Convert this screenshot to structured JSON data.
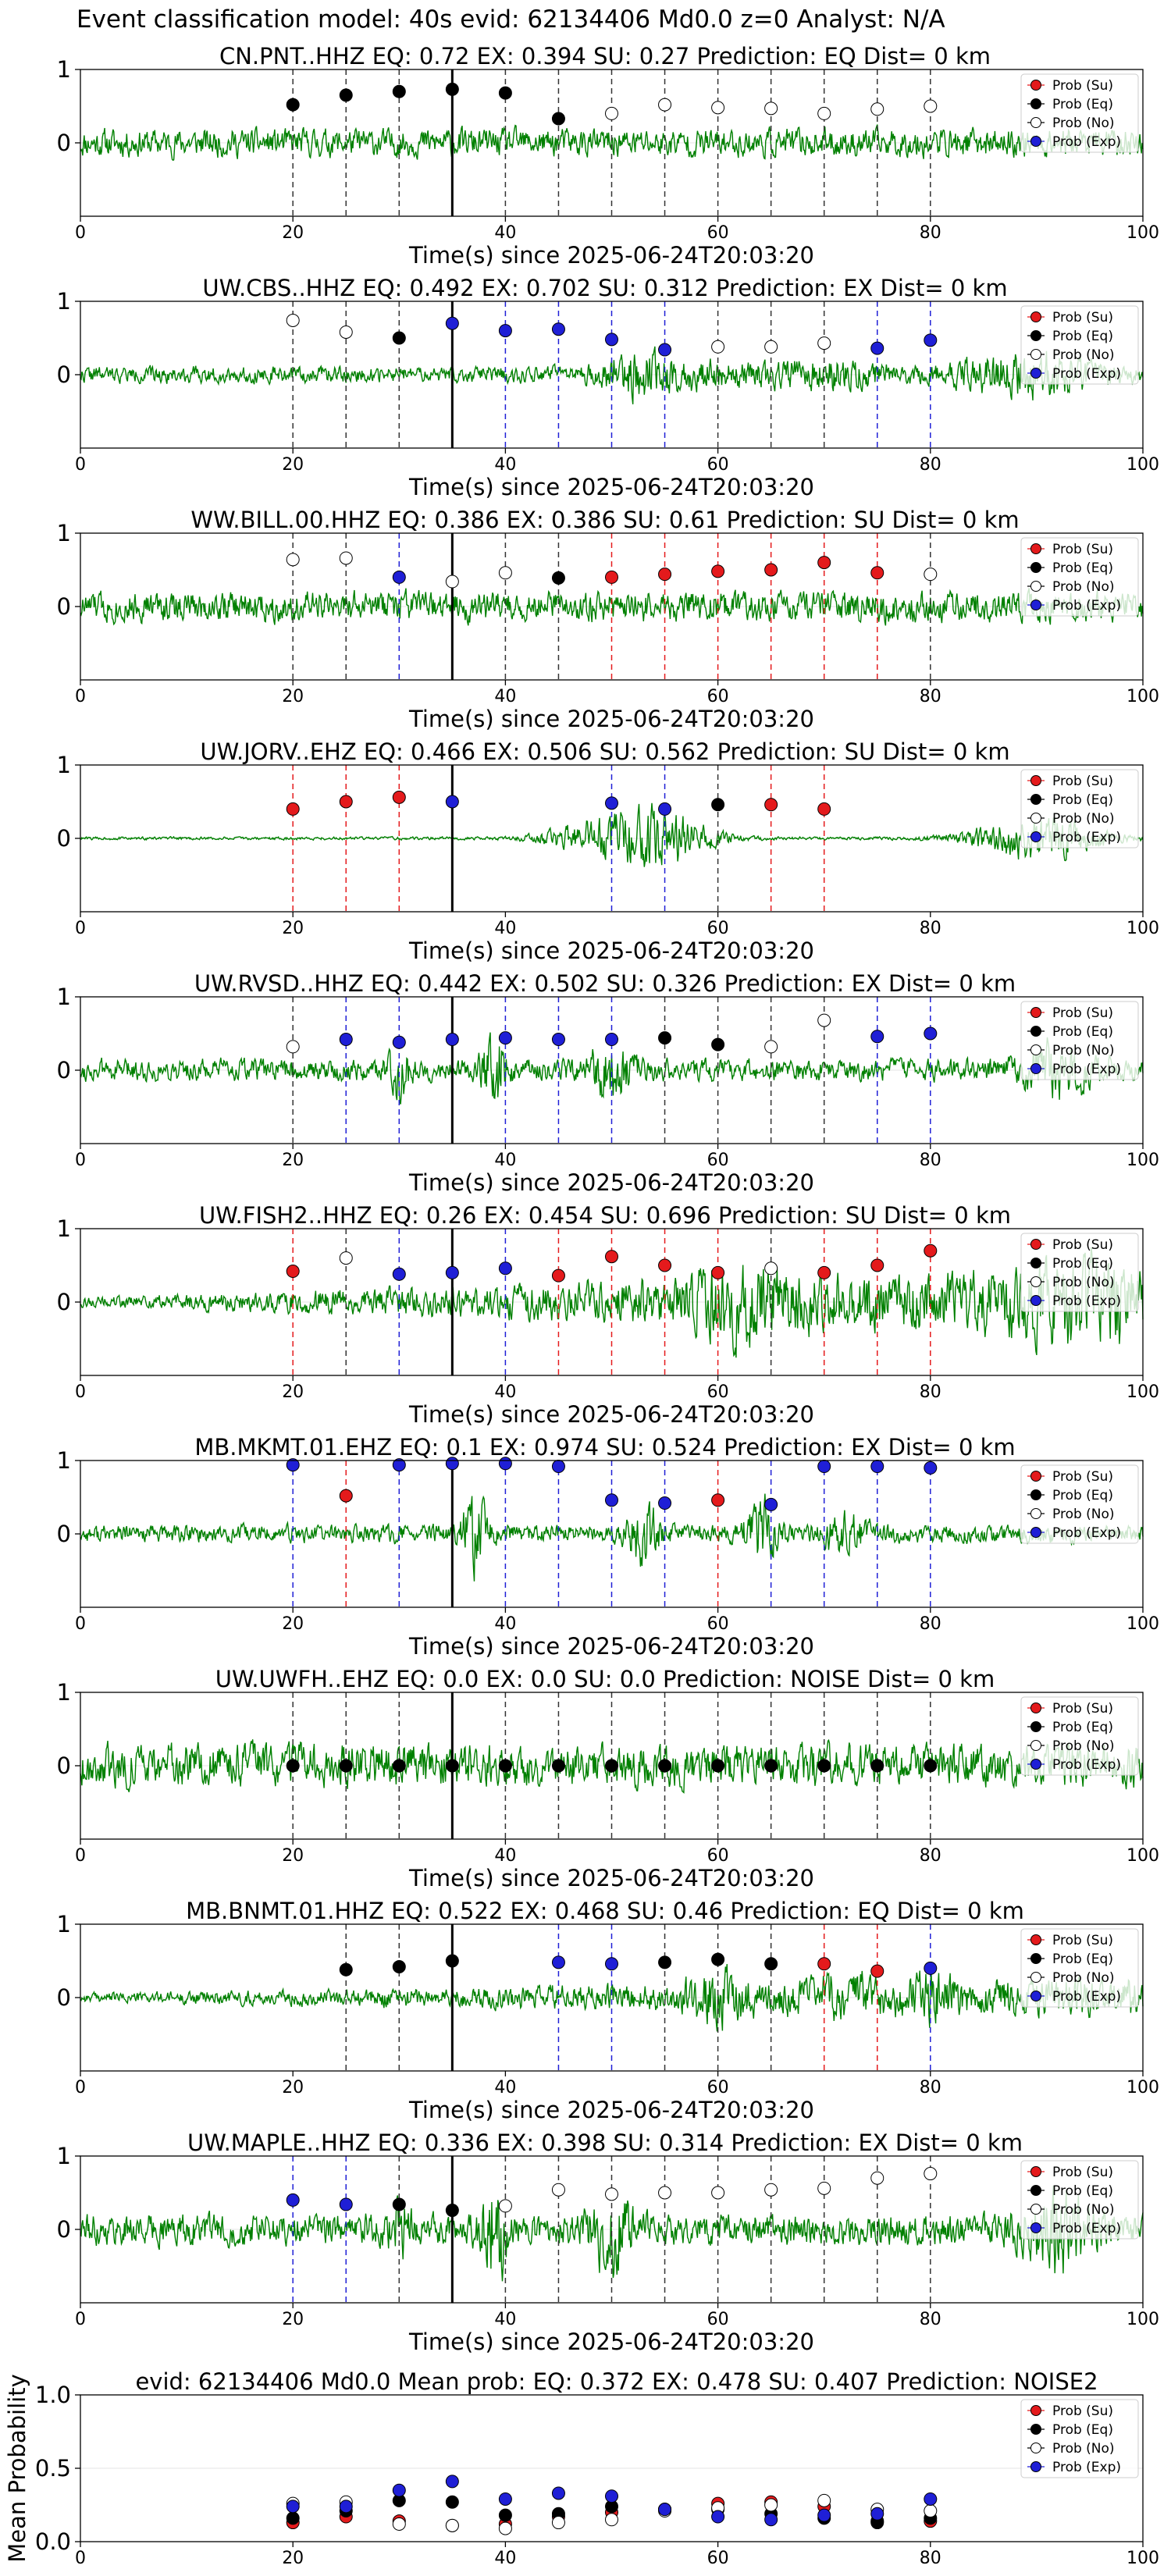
{
  "figure": {
    "title": "Event classification model: 40s evid: 62134406 Md0.0 z=0 Analyst: N/A"
  },
  "legend": {
    "entries": [
      "Prob (Su)",
      "Prob (Eq)",
      "Prob (No)",
      "Prob (Exp)"
    ],
    "colors": {
      "su": "#e41a1c",
      "eq": "#000000",
      "no": "#ffffff",
      "exp": "#1f1fd6"
    },
    "placement": "top-right"
  },
  "colors": {
    "waveform": "#008000",
    "su": "#e41a1c",
    "eq": "#000000",
    "no": "#ffffff",
    "exp": "#1f1fd6",
    "pick": "#000000"
  },
  "chart_data": [
    {
      "type": "line",
      "title": "CN.PNT..HHZ   EQ: 0.72  EX: 0.394  SU: 0.27   Prediction: EQ    Dist= 0 km",
      "xlabel": "Time(s) since 2025-06-24T20:03:20",
      "xlim": [
        0,
        100
      ],
      "ylim": [
        -1,
        1
      ],
      "xticks": [
        "0",
        "20",
        "40",
        "60",
        "80",
        "100"
      ],
      "yticks": [
        "1",
        "0"
      ],
      "pick_time": 35,
      "seed": 11,
      "amp": 0.28,
      "envelope": "uniform",
      "points": [
        {
          "x": 20,
          "y": 0.52,
          "cls": "eq"
        },
        {
          "x": 25,
          "y": 0.65,
          "cls": "eq"
        },
        {
          "x": 30,
          "y": 0.7,
          "cls": "eq"
        },
        {
          "x": 35,
          "y": 0.73,
          "cls": "eq"
        },
        {
          "x": 40,
          "y": 0.68,
          "cls": "eq"
        },
        {
          "x": 45,
          "y": 0.33,
          "cls": "eq"
        },
        {
          "x": 50,
          "y": 0.4,
          "cls": "no"
        },
        {
          "x": 55,
          "y": 0.52,
          "cls": "no"
        },
        {
          "x": 60,
          "y": 0.48,
          "cls": "no"
        },
        {
          "x": 65,
          "y": 0.47,
          "cls": "no"
        },
        {
          "x": 70,
          "y": 0.4,
          "cls": "no"
        },
        {
          "x": 75,
          "y": 0.46,
          "cls": "no"
        },
        {
          "x": 80,
          "y": 0.5,
          "cls": "no"
        }
      ]
    },
    {
      "type": "line",
      "title": "UW.CBS..HHZ   EQ: 0.492  EX: 0.702  SU: 0.312   Prediction: EX    Dist= 0 km",
      "xlabel": "Time(s) since 2025-06-24T20:03:20",
      "xlim": [
        0,
        100
      ],
      "ylim": [
        -1,
        1
      ],
      "xticks": [
        "0",
        "20",
        "40",
        "60",
        "80",
        "100"
      ],
      "yticks": [
        "1",
        "0"
      ],
      "pick_time": 35,
      "seed": 22,
      "amp": 0.2,
      "envelope": "burst50",
      "points": [
        {
          "x": 20,
          "y": 0.74,
          "cls": "no"
        },
        {
          "x": 25,
          "y": 0.58,
          "cls": "no"
        },
        {
          "x": 30,
          "y": 0.5,
          "cls": "eq"
        },
        {
          "x": 35,
          "y": 0.7,
          "cls": "exp"
        },
        {
          "x": 40,
          "y": 0.6,
          "cls": "exp"
        },
        {
          "x": 45,
          "y": 0.62,
          "cls": "exp"
        },
        {
          "x": 50,
          "y": 0.48,
          "cls": "exp"
        },
        {
          "x": 55,
          "y": 0.34,
          "cls": "exp"
        },
        {
          "x": 60,
          "y": 0.38,
          "cls": "no"
        },
        {
          "x": 65,
          "y": 0.38,
          "cls": "no"
        },
        {
          "x": 70,
          "y": 0.43,
          "cls": "no"
        },
        {
          "x": 75,
          "y": 0.36,
          "cls": "exp"
        },
        {
          "x": 80,
          "y": 0.47,
          "cls": "exp"
        }
      ]
    },
    {
      "type": "line",
      "title": "WW.BILL.00.HHZ   EQ: 0.386  EX: 0.386  SU: 0.61   Prediction: SU    Dist= 0 km",
      "xlabel": "Time(s) since 2025-06-24T20:03:20",
      "xlim": [
        0,
        100
      ],
      "ylim": [
        -1,
        1
      ],
      "xticks": [
        "0",
        "20",
        "40",
        "60",
        "80",
        "100"
      ],
      "yticks": [
        "1",
        "0"
      ],
      "pick_time": 35,
      "seed": 33,
      "amp": 0.3,
      "envelope": "uniform",
      "points": [
        {
          "x": 20,
          "y": 0.64,
          "cls": "no"
        },
        {
          "x": 25,
          "y": 0.66,
          "cls": "no"
        },
        {
          "x": 30,
          "y": 0.4,
          "cls": "exp"
        },
        {
          "x": 35,
          "y": 0.34,
          "cls": "no"
        },
        {
          "x": 40,
          "y": 0.46,
          "cls": "no"
        },
        {
          "x": 45,
          "y": 0.39,
          "cls": "eq"
        },
        {
          "x": 50,
          "y": 0.4,
          "cls": "su"
        },
        {
          "x": 55,
          "y": 0.44,
          "cls": "su"
        },
        {
          "x": 60,
          "y": 0.48,
          "cls": "su"
        },
        {
          "x": 65,
          "y": 0.5,
          "cls": "su"
        },
        {
          "x": 70,
          "y": 0.6,
          "cls": "su"
        },
        {
          "x": 75,
          "y": 0.46,
          "cls": "su"
        },
        {
          "x": 80,
          "y": 0.44,
          "cls": "no"
        }
      ]
    },
    {
      "type": "line",
      "title": "UW.JORV..EHZ   EQ: 0.466  EX: 0.506  SU: 0.562   Prediction: SU    Dist= 0 km",
      "xlabel": "Time(s) since 2025-06-24T20:03:20",
      "xlim": [
        0,
        100
      ],
      "ylim": [
        -1,
        1
      ],
      "xticks": [
        "0",
        "20",
        "40",
        "60",
        "80",
        "100"
      ],
      "yticks": [
        "1",
        "0"
      ],
      "pick_time": 35,
      "seed": 44,
      "amp": 0.6,
      "envelope": "jorv",
      "points": [
        {
          "x": 20,
          "y": 0.4,
          "cls": "su"
        },
        {
          "x": 25,
          "y": 0.5,
          "cls": "su"
        },
        {
          "x": 30,
          "y": 0.56,
          "cls": "su"
        },
        {
          "x": 35,
          "y": 0.5,
          "cls": "exp"
        },
        {
          "x": 50,
          "y": 0.48,
          "cls": "exp"
        },
        {
          "x": 55,
          "y": 0.4,
          "cls": "exp"
        },
        {
          "x": 60,
          "y": 0.46,
          "cls": "eq"
        },
        {
          "x": 65,
          "y": 0.46,
          "cls": "su"
        },
        {
          "x": 70,
          "y": 0.4,
          "cls": "su"
        }
      ]
    },
    {
      "type": "line",
      "title": "UW.RVSD..HHZ   EQ: 0.442  EX: 0.502  SU: 0.326   Prediction: EX    Dist= 0 km",
      "xlabel": "Time(s) since 2025-06-24T20:03:20",
      "xlim": [
        0,
        100
      ],
      "ylim": [
        -1,
        1
      ],
      "xticks": [
        "0",
        "20",
        "40",
        "60",
        "80",
        "100"
      ],
      "yticks": [
        "1",
        "0"
      ],
      "pick_time": 35,
      "seed": 55,
      "amp": 0.24,
      "envelope": "spikes",
      "points": [
        {
          "x": 20,
          "y": 0.32,
          "cls": "no"
        },
        {
          "x": 25,
          "y": 0.42,
          "cls": "exp"
        },
        {
          "x": 30,
          "y": 0.38,
          "cls": "exp"
        },
        {
          "x": 35,
          "y": 0.42,
          "cls": "exp"
        },
        {
          "x": 40,
          "y": 0.44,
          "cls": "exp"
        },
        {
          "x": 45,
          "y": 0.42,
          "cls": "exp"
        },
        {
          "x": 50,
          "y": 0.42,
          "cls": "exp"
        },
        {
          "x": 55,
          "y": 0.44,
          "cls": "eq"
        },
        {
          "x": 60,
          "y": 0.35,
          "cls": "eq"
        },
        {
          "x": 65,
          "y": 0.32,
          "cls": "no"
        },
        {
          "x": 70,
          "y": 0.68,
          "cls": "no"
        },
        {
          "x": 75,
          "y": 0.46,
          "cls": "exp"
        },
        {
          "x": 80,
          "y": 0.5,
          "cls": "exp"
        }
      ]
    },
    {
      "type": "line",
      "title": "UW.FISH2..HHZ   EQ: 0.26  EX: 0.454  SU: 0.696   Prediction: SU    Dist= 0 km",
      "xlabel": "Time(s) since 2025-06-24T20:03:20",
      "xlim": [
        0,
        100
      ],
      "ylim": [
        -1,
        1
      ],
      "xticks": [
        "0",
        "20",
        "40",
        "60",
        "80",
        "100"
      ],
      "yticks": [
        "1",
        "0"
      ],
      "pick_time": 35,
      "seed": 66,
      "amp": 0.5,
      "envelope": "rising",
      "points": [
        {
          "x": 20,
          "y": 0.42,
          "cls": "su"
        },
        {
          "x": 25,
          "y": 0.6,
          "cls": "no"
        },
        {
          "x": 30,
          "y": 0.38,
          "cls": "exp"
        },
        {
          "x": 35,
          "y": 0.4,
          "cls": "exp"
        },
        {
          "x": 40,
          "y": 0.46,
          "cls": "exp"
        },
        {
          "x": 45,
          "y": 0.36,
          "cls": "su"
        },
        {
          "x": 50,
          "y": 0.62,
          "cls": "su"
        },
        {
          "x": 55,
          "y": 0.5,
          "cls": "su"
        },
        {
          "x": 60,
          "y": 0.4,
          "cls": "su"
        },
        {
          "x": 65,
          "y": 0.46,
          "cls": "no"
        },
        {
          "x": 70,
          "y": 0.4,
          "cls": "su"
        },
        {
          "x": 75,
          "y": 0.5,
          "cls": "su"
        },
        {
          "x": 80,
          "y": 0.7,
          "cls": "su"
        }
      ]
    },
    {
      "type": "line",
      "title": "MB.MKMT.01.EHZ   EQ: 0.1  EX: 0.974  SU: 0.524   Prediction: EX    Dist= 0 km",
      "xlabel": "Time(s) since 2025-06-24T20:03:20",
      "xlim": [
        0,
        100
      ],
      "ylim": [
        -1,
        1
      ],
      "xticks": [
        "0",
        "20",
        "40",
        "60",
        "80",
        "100"
      ],
      "yticks": [
        "1",
        "0"
      ],
      "pick_time": 35,
      "seed": 77,
      "amp": 0.22,
      "envelope": "blasts",
      "points": [
        {
          "x": 20,
          "y": 0.94,
          "cls": "exp"
        },
        {
          "x": 25,
          "y": 0.52,
          "cls": "su"
        },
        {
          "x": 30,
          "y": 0.94,
          "cls": "exp"
        },
        {
          "x": 35,
          "y": 0.96,
          "cls": "exp"
        },
        {
          "x": 40,
          "y": 0.96,
          "cls": "exp"
        },
        {
          "x": 45,
          "y": 0.92,
          "cls": "exp"
        },
        {
          "x": 50,
          "y": 0.46,
          "cls": "exp"
        },
        {
          "x": 55,
          "y": 0.42,
          "cls": "exp"
        },
        {
          "x": 60,
          "y": 0.46,
          "cls": "su"
        },
        {
          "x": 65,
          "y": 0.4,
          "cls": "exp"
        },
        {
          "x": 70,
          "y": 0.92,
          "cls": "exp"
        },
        {
          "x": 75,
          "y": 0.92,
          "cls": "exp"
        },
        {
          "x": 80,
          "y": 0.9,
          "cls": "exp"
        }
      ]
    },
    {
      "type": "line",
      "title": "UW.UWFH..EHZ   EQ: 0.0  EX: 0.0  SU: 0.0   Prediction: NOISE    Dist= 0 km",
      "xlabel": "Time(s) since 2025-06-24T20:03:20",
      "xlim": [
        0,
        100
      ],
      "ylim": [
        -1,
        1
      ],
      "xticks": [
        "0",
        "20",
        "40",
        "60",
        "80",
        "100"
      ],
      "yticks": [
        "1",
        "0"
      ],
      "pick_time": 35,
      "seed": 88,
      "amp": 0.42,
      "envelope": "uniform",
      "points": [
        {
          "x": 20,
          "y": 0.0,
          "cls": "eq"
        },
        {
          "x": 25,
          "y": 0.0,
          "cls": "eq"
        },
        {
          "x": 30,
          "y": 0.0,
          "cls": "eq"
        },
        {
          "x": 35,
          "y": 0.0,
          "cls": "eq"
        },
        {
          "x": 40,
          "y": 0.0,
          "cls": "eq"
        },
        {
          "x": 45,
          "y": 0.0,
          "cls": "eq"
        },
        {
          "x": 50,
          "y": 0.0,
          "cls": "eq"
        },
        {
          "x": 55,
          "y": 0.0,
          "cls": "eq"
        },
        {
          "x": 60,
          "y": 0.0,
          "cls": "eq"
        },
        {
          "x": 65,
          "y": 0.0,
          "cls": "eq"
        },
        {
          "x": 70,
          "y": 0.0,
          "cls": "eq"
        },
        {
          "x": 75,
          "y": 0.0,
          "cls": "eq"
        },
        {
          "x": 80,
          "y": 0.0,
          "cls": "eq"
        }
      ]
    },
    {
      "type": "line",
      "title": "MB.BNMT.01.HHZ   EQ: 0.522  EX: 0.468  SU: 0.46   Prediction: EQ    Dist= 0 km",
      "xlabel": "Time(s) since 2025-06-24T20:03:20",
      "xlim": [
        0,
        100
      ],
      "ylim": [
        -1,
        1
      ],
      "xticks": [
        "0",
        "20",
        "40",
        "60",
        "80",
        "100"
      ],
      "yticks": [
        "1",
        "0"
      ],
      "pick_time": 35,
      "seed": 99,
      "amp": 0.16,
      "envelope": "slowrise",
      "points": [
        {
          "x": 25,
          "y": 0.38,
          "cls": "eq"
        },
        {
          "x": 30,
          "y": 0.42,
          "cls": "eq"
        },
        {
          "x": 35,
          "y": 0.5,
          "cls": "eq"
        },
        {
          "x": 45,
          "y": 0.48,
          "cls": "exp"
        },
        {
          "x": 50,
          "y": 0.46,
          "cls": "exp"
        },
        {
          "x": 55,
          "y": 0.48,
          "cls": "eq"
        },
        {
          "x": 60,
          "y": 0.52,
          "cls": "eq"
        },
        {
          "x": 65,
          "y": 0.46,
          "cls": "eq"
        },
        {
          "x": 70,
          "y": 0.46,
          "cls": "su"
        },
        {
          "x": 75,
          "y": 0.36,
          "cls": "su"
        },
        {
          "x": 80,
          "y": 0.4,
          "cls": "exp"
        }
      ]
    },
    {
      "type": "line",
      "title": "UW.MAPLE..HHZ   EQ: 0.336  EX: 0.398  SU: 0.314   Prediction: EX    Dist= 0 km",
      "xlabel": "Time(s) since 2025-06-24T20:03:20",
      "xlim": [
        0,
        100
      ],
      "ylim": [
        -1,
        1
      ],
      "xticks": [
        "0",
        "20",
        "40",
        "60",
        "80",
        "100"
      ],
      "yticks": [
        "1",
        "0"
      ],
      "pick_time": 35,
      "seed": 111,
      "amp": 0.34,
      "envelope": "spikes",
      "points": [
        {
          "x": 20,
          "y": 0.4,
          "cls": "exp"
        },
        {
          "x": 25,
          "y": 0.34,
          "cls": "exp"
        },
        {
          "x": 30,
          "y": 0.34,
          "cls": "eq"
        },
        {
          "x": 35,
          "y": 0.26,
          "cls": "eq"
        },
        {
          "x": 40,
          "y": 0.32,
          "cls": "no"
        },
        {
          "x": 45,
          "y": 0.54,
          "cls": "no"
        },
        {
          "x": 50,
          "y": 0.48,
          "cls": "no"
        },
        {
          "x": 55,
          "y": 0.5,
          "cls": "no"
        },
        {
          "x": 60,
          "y": 0.5,
          "cls": "no"
        },
        {
          "x": 65,
          "y": 0.54,
          "cls": "no"
        },
        {
          "x": 70,
          "y": 0.56,
          "cls": "no"
        },
        {
          "x": 75,
          "y": 0.7,
          "cls": "no"
        },
        {
          "x": 80,
          "y": 0.76,
          "cls": "no"
        }
      ]
    },
    {
      "type": "scatter",
      "title": "evid: 62134406  Md0.0   Mean prob:   EQ: 0.372  EX: 0.478  SU: 0.407   Prediction: NOISE2",
      "ylabel": "Mean Probability",
      "xlim": [
        0,
        100
      ],
      "ylim": [
        0,
        1
      ],
      "xticks": [
        "0",
        "20",
        "40",
        "60",
        "80",
        "100"
      ],
      "yticks": [
        "0.0",
        "0.5",
        "1.0"
      ],
      "x": [
        20,
        25,
        30,
        35,
        40,
        45,
        50,
        55,
        60,
        65,
        70,
        75,
        80
      ],
      "series": [
        {
          "name": "Prob (Su)",
          "cls": "su",
          "values": [
            0.13,
            0.17,
            0.14,
            0.11,
            0.12,
            0.17,
            0.2,
            0.22,
            0.26,
            0.27,
            0.24,
            0.14,
            0.14
          ]
        },
        {
          "name": "Prob (Eq)",
          "cls": "eq",
          "values": [
            0.16,
            0.21,
            0.28,
            0.27,
            0.18,
            0.19,
            0.24,
            0.22,
            0.22,
            0.19,
            0.16,
            0.13,
            0.16
          ]
        },
        {
          "name": "Prob (No)",
          "cls": "no",
          "values": [
            0.26,
            0.27,
            0.12,
            0.11,
            0.09,
            0.13,
            0.15,
            0.21,
            0.23,
            0.25,
            0.28,
            0.22,
            0.21
          ]
        },
        {
          "name": "Prob (Exp)",
          "cls": "exp",
          "values": [
            0.24,
            0.24,
            0.35,
            0.41,
            0.29,
            0.33,
            0.31,
            0.22,
            0.17,
            0.15,
            0.18,
            0.19,
            0.29
          ]
        }
      ]
    }
  ]
}
